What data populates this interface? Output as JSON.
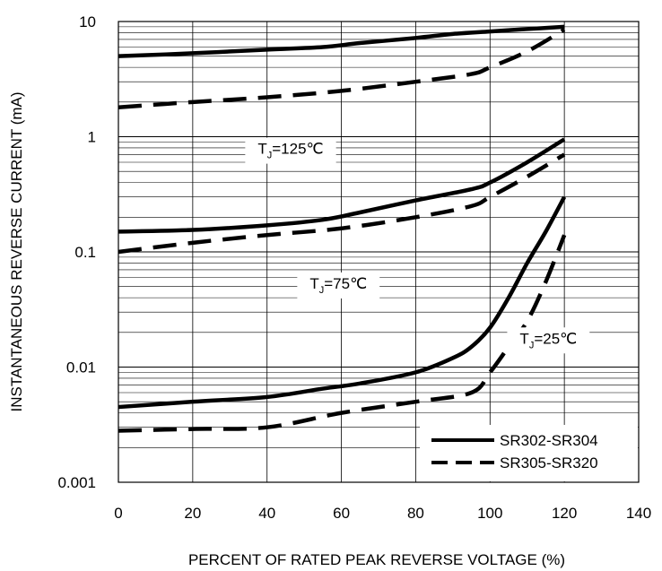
{
  "chart_data": {
    "type": "line",
    "title": "",
    "xlabel": "PERCENT OF RATED PEAK REVERSE VOLTAGE (%)",
    "ylabel": "INSTANTANEOUS REVERSE CURRENT (mA)",
    "xlim": [
      0,
      140
    ],
    "ylim": [
      0.001,
      10
    ],
    "yscale": "log",
    "x_ticks": [
      "0",
      "20",
      "40",
      "60",
      "80",
      "100",
      "120",
      "140"
    ],
    "y_ticks": [
      "0.001",
      "0.01",
      "0.1",
      "1",
      "10"
    ],
    "grid": true,
    "legend": {
      "placement": "bottom-right",
      "entries": [
        {
          "label": "SR302-SR304",
          "style": "solid"
        },
        {
          "label": "SR305-SR320",
          "style": "dashed"
        }
      ]
    },
    "annotations": [
      {
        "text_main": "T",
        "text_sub": "J",
        "text_tail": "=125℃"
      },
      {
        "text_main": "T",
        "text_sub": "J",
        "text_tail": "=75℃"
      },
      {
        "text_main": "T",
        "text_sub": "J",
        "text_tail": "=25℃"
      }
    ],
    "series": [
      {
        "style": "solid",
        "temperature": "125℃",
        "x": [
          0,
          20,
          40,
          55,
          65,
          80,
          90,
          100,
          110,
          120
        ],
        "y": [
          5.0,
          5.3,
          5.7,
          6.0,
          6.5,
          7.2,
          7.8,
          8.2,
          8.6,
          9.0
        ]
      },
      {
        "style": "dashed",
        "temperature": "125℃",
        "x": [
          0,
          20,
          40,
          60,
          80,
          95,
          100,
          110,
          120
        ],
        "y": [
          1.8,
          2.0,
          2.2,
          2.5,
          3.0,
          3.5,
          4.0,
          5.5,
          8.5
        ]
      },
      {
        "style": "solid",
        "temperature": "75℃",
        "x": [
          0,
          20,
          40,
          55,
          65,
          80,
          95,
          100,
          110,
          120
        ],
        "y": [
          0.15,
          0.155,
          0.17,
          0.19,
          0.22,
          0.28,
          0.35,
          0.4,
          0.6,
          0.95
        ]
      },
      {
        "style": "dashed",
        "temperature": "75℃",
        "x": [
          0,
          20,
          40,
          60,
          80,
          95,
          100,
          110,
          120
        ],
        "y": [
          0.1,
          0.12,
          0.14,
          0.16,
          0.2,
          0.25,
          0.3,
          0.45,
          0.7
        ]
      },
      {
        "style": "solid",
        "temperature": "25℃",
        "x": [
          0,
          20,
          40,
          55,
          65,
          80,
          90,
          95,
          100,
          105,
          110,
          115,
          120
        ],
        "y": [
          0.0045,
          0.005,
          0.0055,
          0.0065,
          0.0072,
          0.009,
          0.012,
          0.015,
          0.022,
          0.04,
          0.08,
          0.15,
          0.3
        ]
      },
      {
        "style": "dashed",
        "temperature": "25℃",
        "x": [
          0,
          20,
          40,
          60,
          80,
          95,
          100,
          105,
          110,
          115,
          120
        ],
        "y": [
          0.0028,
          0.0029,
          0.003,
          0.004,
          0.005,
          0.006,
          0.009,
          0.015,
          0.025,
          0.055,
          0.14
        ]
      }
    ]
  }
}
